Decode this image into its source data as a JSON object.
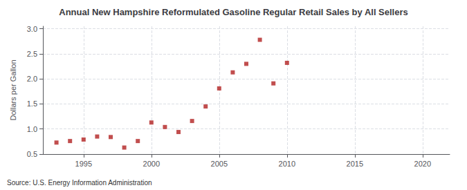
{
  "chart_data": {
    "type": "scatter",
    "title": "Annual New Hampshire Reformulated Gasoline Regular Retail Sales by All Sellers",
    "ylabel": "Dollars per Gallon",
    "annotation": "Source: U.S. Energy Information Administration",
    "x": [
      1993,
      1994,
      1995,
      1996,
      1997,
      1998,
      1999,
      2000,
      2001,
      2002,
      2003,
      2004,
      2005,
      2006,
      2007,
      2008,
      2009,
      2010
    ],
    "values": [
      0.73,
      0.76,
      0.79,
      0.85,
      0.84,
      0.63,
      0.76,
      1.13,
      1.04,
      0.94,
      1.16,
      1.45,
      1.81,
      2.13,
      2.3,
      2.78,
      1.91,
      2.32
    ],
    "xlim": [
      1992,
      2022
    ],
    "xticks": [
      1995,
      2000,
      2005,
      2010,
      2015,
      2020
    ],
    "ylim": [
      0.5,
      3.05
    ],
    "yticks": [
      0.5,
      {
        "value": 1,
        "label": "1.0"
      },
      1.5,
      {
        "value": 2,
        "label": "2.0"
      },
      2.5,
      {
        "value": 3,
        "label": "3.0"
      }
    ],
    "color": "#b22222",
    "marker": "square",
    "grid": true
  }
}
